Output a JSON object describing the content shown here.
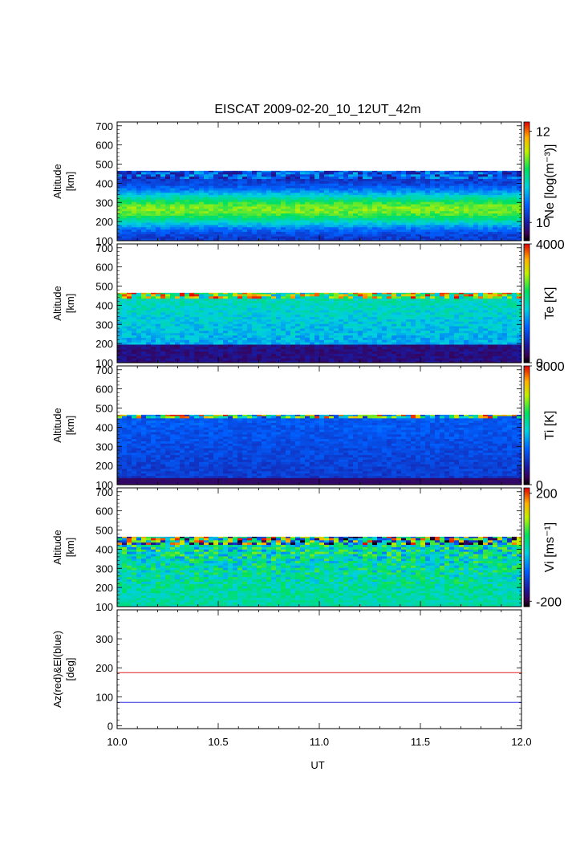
{
  "title": "EISCAT 2009-02-20_10_12UT_42m",
  "xlabel": "UT",
  "x_ticks": [
    "10.0",
    "10.5",
    "11.0",
    "11.5",
    "12.0"
  ],
  "colors": {
    "az_line": "#e02020",
    "el_line": "#3030e0"
  },
  "chart_data": [
    {
      "type": "heatmap",
      "id": "ne",
      "ylabel": [
        "Altitude",
        "[km]"
      ],
      "y_ticks": [
        "100",
        "200",
        "300",
        "400",
        "500",
        "600",
        "700"
      ],
      "ylim": [
        100,
        720
      ],
      "xlim": [
        10.0,
        12.0
      ],
      "colorbar": {
        "label": "Ne [log(m⁻³)]",
        "ticks": [
          "10",
          "12"
        ],
        "range": [
          9.6,
          12.2
        ]
      },
      "data_top_km": 465,
      "description_values": {
        "peak_alt_km": 260,
        "peak_value": 11.4,
        "bottom_value": 10.1
      }
    },
    {
      "type": "heatmap",
      "id": "te",
      "ylabel": [
        "Altitude",
        "[km]"
      ],
      "y_ticks": [
        "100",
        "200",
        "300",
        "400",
        "500",
        "600",
        "700"
      ],
      "ylim": [
        100,
        720
      ],
      "xlim": [
        10.0,
        12.0
      ],
      "colorbar": {
        "label": "Te [K]",
        "ticks": [
          "0",
          "4000"
        ],
        "range": [
          0,
          4000
        ]
      },
      "data_top_km": 465,
      "description_values": {
        "upper_value": 1900,
        "lower_value": 300
      }
    },
    {
      "type": "heatmap",
      "id": "ti",
      "ylabel": [
        "Altitude",
        "[km]"
      ],
      "y_ticks": [
        "100",
        "200",
        "300",
        "400",
        "500",
        "600",
        "700"
      ],
      "ylim": [
        100,
        720
      ],
      "xlim": [
        10.0,
        12.0
      ],
      "colorbar": {
        "label": "Ti [K]",
        "ticks": [
          "0",
          "3000"
        ],
        "range": [
          0,
          3000
        ]
      },
      "data_top_km": 465,
      "description_values": {
        "upper_value": 800,
        "lower_value": 250
      }
    },
    {
      "type": "heatmap",
      "id": "vi",
      "ylabel": [
        "Altitude",
        "[km]"
      ],
      "y_ticks": [
        "100",
        "200",
        "300",
        "400",
        "500",
        "600",
        "700"
      ],
      "ylim": [
        100,
        720
      ],
      "xlim": [
        10.0,
        12.0
      ],
      "colorbar": {
        "label": "Vi [ms⁻¹]",
        "ticks": [
          "200",
          "-200"
        ],
        "range": [
          -220,
          220
        ]
      },
      "data_top_km": 465,
      "description_values": {
        "mean_value": 10
      }
    },
    {
      "type": "line",
      "id": "azel",
      "ylabel": [
        "Az(red)&El(blue)",
        "[deg]"
      ],
      "y_ticks": [
        "0",
        "100",
        "200",
        "300"
      ],
      "ylim": [
        -10,
        400
      ],
      "xlim": [
        10.0,
        12.0
      ],
      "series": [
        {
          "x": [
            10.0,
            12.0
          ],
          "y": [
            183,
            183
          ]
        },
        {
          "x": [
            10.0,
            12.0
          ],
          "y": [
            81,
            81
          ]
        }
      ]
    }
  ]
}
